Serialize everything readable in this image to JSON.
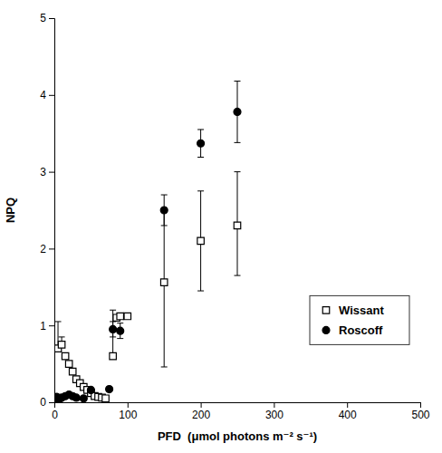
{
  "chart_data": {
    "type": "scatter",
    "xlabel": "PFD  (μmol photons m⁻² s⁻¹)",
    "ylabel": "NPQ",
    "xlim": [
      0,
      500
    ],
    "ylim": [
      0,
      5
    ],
    "xticks": [
      0,
      100,
      200,
      300,
      400,
      500
    ],
    "yticks": [
      0,
      1,
      2,
      3,
      4,
      5
    ],
    "legend": "lower right",
    "series": [
      {
        "name": "Wissant",
        "marker": "open-square",
        "color": "black",
        "x": [
          5,
          10,
          15,
          20,
          25,
          30,
          35,
          40,
          45,
          50,
          55,
          60,
          65,
          70,
          80,
          85,
          90,
          100,
          150,
          200,
          250
        ],
        "values": [
          0.7,
          0.75,
          0.6,
          0.5,
          0.4,
          0.3,
          0.25,
          0.2,
          0.16,
          0.12,
          0.08,
          0.07,
          0.06,
          0.05,
          0.6,
          1.1,
          1.12,
          1.12,
          1.56,
          2.1,
          2.3
        ],
        "error_lo": [
          0.0,
          0.0,
          0.0,
          0.0,
          0.0,
          0.0,
          0.0,
          0.0,
          0.0,
          0.0,
          0.0,
          0.0,
          0.0,
          0.0,
          0.0,
          0.0,
          0.0,
          0.0,
          1.1,
          0.65,
          0.65
        ],
        "error_hi": [
          0.35,
          0.1,
          0.0,
          0.0,
          0.0,
          0.0,
          0.0,
          0.0,
          0.0,
          0.0,
          0.0,
          0.0,
          0.0,
          0.0,
          0.6,
          0.0,
          0.0,
          0.0,
          0.95,
          0.65,
          0.7
        ]
      },
      {
        "name": "Roscoff",
        "marker": "circle",
        "color": "black",
        "x": [
          0,
          1,
          2,
          3,
          4,
          5,
          6,
          8,
          10,
          15,
          20,
          25,
          30,
          40,
          50,
          75,
          80,
          90,
          150,
          200,
          250
        ],
        "values": [
          0.04,
          0.05,
          0.06,
          0.07,
          0.06,
          0.05,
          0.04,
          0.05,
          0.06,
          0.08,
          0.1,
          0.08,
          0.06,
          0.05,
          0.16,
          0.17,
          0.95,
          0.93,
          2.5,
          3.37,
          3.78
        ],
        "error": [
          0.0,
          0.0,
          0.0,
          0.0,
          0.0,
          0.0,
          0.0,
          0.0,
          0.0,
          0.0,
          0.0,
          0.0,
          0.0,
          0.0,
          0.0,
          0.0,
          0.1,
          0.1,
          0.2,
          0.18,
          0.4
        ]
      }
    ]
  }
}
